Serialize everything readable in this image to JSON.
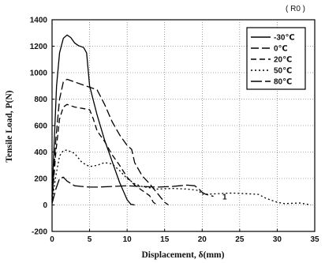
{
  "figure_label": "( R0 )",
  "chart_data": {
    "type": "line",
    "xlabel": "Displacement, δ(mm)",
    "ylabel": "Tensile Load, P(N)",
    "xlim": [
      0,
      35
    ],
    "ylim": [
      -200,
      1400
    ],
    "xticks": [
      0,
      5,
      10,
      15,
      20,
      25,
      30,
      35
    ],
    "yticks": [
      -200,
      0,
      200,
      400,
      600,
      800,
      1000,
      1200,
      1400
    ],
    "grid": true,
    "legend_position": "top-right",
    "annotations": [
      {
        "text": "1",
        "x": 22.7,
        "y": 65
      }
    ],
    "series": [
      {
        "name": "-30℃",
        "dash": "solid",
        "points": [
          [
            0,
            60
          ],
          [
            0.3,
            500
          ],
          [
            0.6,
            900
          ],
          [
            1,
            1150
          ],
          [
            1.5,
            1260
          ],
          [
            2,
            1285
          ],
          [
            2.5,
            1265
          ],
          [
            3,
            1225
          ],
          [
            3.5,
            1205
          ],
          [
            4.2,
            1190
          ],
          [
            4.6,
            1150
          ],
          [
            5,
            900
          ],
          [
            6,
            680
          ],
          [
            7,
            490
          ],
          [
            8,
            330
          ],
          [
            9,
            170
          ],
          [
            10,
            40
          ],
          [
            10.5,
            5
          ],
          [
            11,
            0
          ]
        ]
      },
      {
        "name": "0℃",
        "dash": "10,4",
        "points": [
          [
            0,
            40
          ],
          [
            0.5,
            500
          ],
          [
            1,
            800
          ],
          [
            1.5,
            930
          ],
          [
            2,
            950
          ],
          [
            3,
            930
          ],
          [
            4,
            910
          ],
          [
            5,
            890
          ],
          [
            6,
            870
          ],
          [
            7,
            760
          ],
          [
            8,
            630
          ],
          [
            9,
            530
          ],
          [
            10,
            450
          ],
          [
            10.6,
            420
          ],
          [
            11,
            320
          ],
          [
            12,
            220
          ],
          [
            13,
            160
          ],
          [
            14,
            90
          ],
          [
            15,
            20
          ],
          [
            15.5,
            0
          ]
        ]
      },
      {
        "name": "20℃",
        "dash": "7,4",
        "points": [
          [
            0,
            30
          ],
          [
            0.5,
            400
          ],
          [
            1,
            650
          ],
          [
            1.5,
            740
          ],
          [
            2,
            760
          ],
          [
            3,
            740
          ],
          [
            4,
            730
          ],
          [
            5,
            720
          ],
          [
            5.5,
            650
          ],
          [
            6,
            560
          ],
          [
            7,
            480
          ],
          [
            8,
            380
          ],
          [
            9,
            300
          ],
          [
            10,
            210
          ],
          [
            11,
            150
          ],
          [
            12,
            110
          ],
          [
            13,
            70
          ],
          [
            13.5,
            20
          ],
          [
            14,
            0
          ]
        ]
      },
      {
        "name": "50℃",
        "dash": "2,3",
        "points": [
          [
            0,
            20
          ],
          [
            0.5,
            220
          ],
          [
            1,
            370
          ],
          [
            1.5,
            410
          ],
          [
            2,
            415
          ],
          [
            3,
            390
          ],
          [
            4,
            320
          ],
          [
            5,
            290
          ],
          [
            6,
            300
          ],
          [
            7,
            320
          ],
          [
            8,
            310
          ],
          [
            9,
            260
          ],
          [
            10,
            200
          ],
          [
            11,
            160
          ],
          [
            12,
            140
          ],
          [
            14,
            120
          ],
          [
            16,
            125
          ],
          [
            18,
            120
          ],
          [
            19.5,
            110
          ],
          [
            20,
            80
          ],
          [
            22,
            85
          ],
          [
            24,
            90
          ],
          [
            26,
            85
          ],
          [
            27.5,
            80
          ],
          [
            28.5,
            50
          ],
          [
            30,
            20
          ],
          [
            31,
            10
          ],
          [
            33,
            15
          ],
          [
            34.5,
            0
          ]
        ]
      },
      {
        "name": "80℃",
        "dash": "14,4",
        "points": [
          [
            0,
            10
          ],
          [
            0.5,
            120
          ],
          [
            1,
            200
          ],
          [
            1.5,
            210
          ],
          [
            2,
            180
          ],
          [
            3,
            145
          ],
          [
            4,
            140
          ],
          [
            5,
            135
          ],
          [
            6,
            135
          ],
          [
            8,
            140
          ],
          [
            10,
            145
          ],
          [
            12,
            140
          ],
          [
            14,
            135
          ],
          [
            16,
            140
          ],
          [
            17,
            145
          ],
          [
            18,
            150
          ],
          [
            19,
            145
          ],
          [
            19.5,
            125
          ],
          [
            20,
            95
          ],
          [
            20.5,
            80
          ],
          [
            21.5,
            65
          ]
        ]
      }
    ]
  }
}
